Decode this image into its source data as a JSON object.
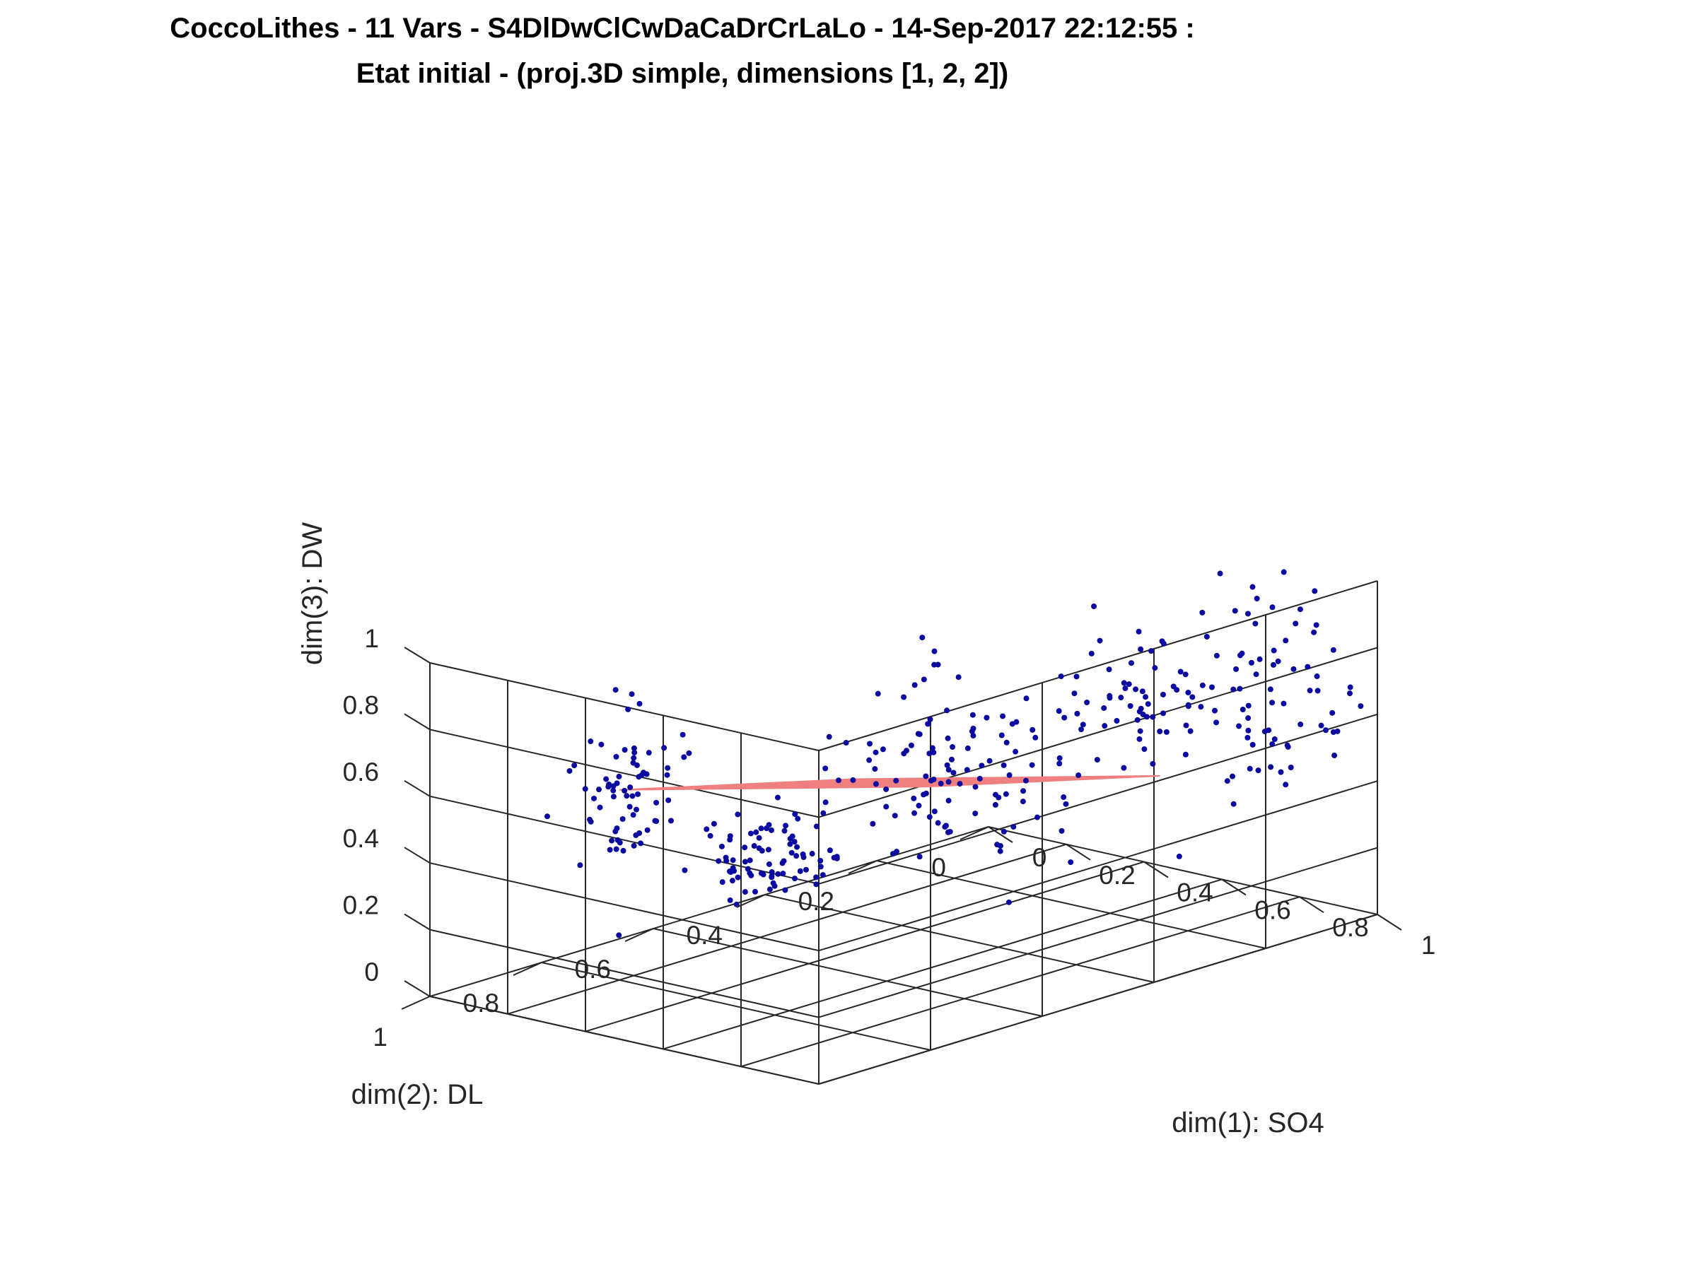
{
  "chart_data": {
    "type": "scatter",
    "title_line1": "CoccoLithes - 11 Vars - S4DlDwClCwDaCaDrCrLaLo - 14-Sep-2017 22:12:55 :",
    "title_line2": "Etat initial - (proj.3D simple, dimensions [1, 2, 2])",
    "xlabel": "dim(1): SO4",
    "ylabel": "dim(2): DL",
    "zlabel": "dim(3): DW",
    "xlim": [
      0,
      1
    ],
    "ylim": [
      0,
      1
    ],
    "zlim": [
      0,
      1
    ],
    "x_ticks": [
      "0",
      "0.2",
      "0.4",
      "0.6",
      "0.8",
      "1"
    ],
    "y_ticks": [
      "0",
      "0.2",
      "0.4",
      "0.6",
      "0.8",
      "1"
    ],
    "z_ticks": [
      "0",
      "0.2",
      "0.4",
      "0.6",
      "0.8",
      "1"
    ],
    "grid": true,
    "point_color": "#0a0aa0",
    "mesh_color": "#f08080",
    "mesh": {
      "name": "",
      "x_range": [
        0.2,
        0.8
      ],
      "y_range": [
        0.25,
        0.8
      ],
      "divisions": 10,
      "z_corners": {
        "x0y0": 0.3,
        "x1y0": 0.49,
        "x0y1": 0.57,
        "x1y1": 0.76
      }
    },
    "series": [
      {
        "name": "",
        "clusters": [
          {
            "center": [
              0.22,
              0.55,
              0.25
            ],
            "spread": [
              0.05,
              0.05,
              0.06
            ],
            "count": 80
          },
          {
            "center": [
              0.08,
              0.7,
              0.48
            ],
            "spread": [
              0.04,
              0.04,
              0.12
            ],
            "count": 70
          },
          {
            "center": [
              0.45,
              0.35,
              0.55
            ],
            "spread": [
              0.1,
              0.1,
              0.1
            ],
            "count": 60
          },
          {
            "center": [
              0.6,
              0.15,
              0.6
            ],
            "spread": [
              0.08,
              0.06,
              0.12
            ],
            "count": 60
          },
          {
            "center": [
              0.85,
              0.1,
              0.7
            ],
            "spread": [
              0.08,
              0.06,
              0.18
            ],
            "count": 70
          },
          {
            "center": [
              0.3,
              0.3,
              0.3
            ],
            "spread": [
              0.12,
              0.08,
              0.1
            ],
            "count": 60
          }
        ]
      }
    ]
  }
}
